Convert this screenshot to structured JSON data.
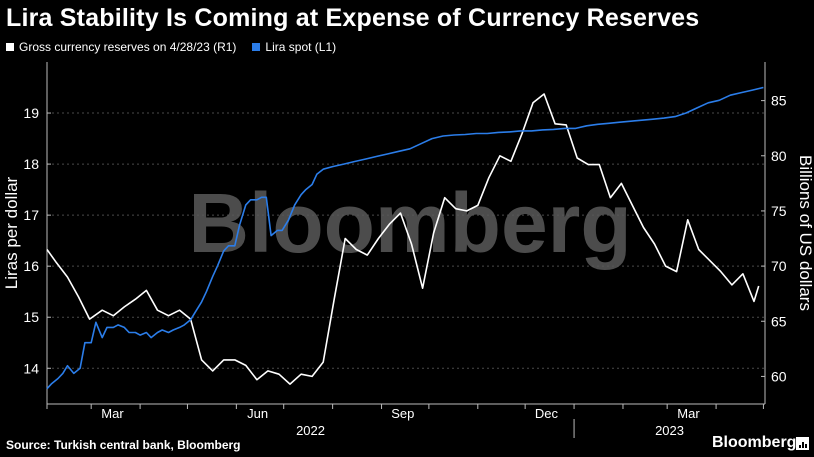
{
  "title": "Lira Stability Is Coming at Expense of Currency Reserves",
  "source": "Source: Turkish central bank, Bloomberg",
  "brand": "Bloomberg",
  "watermark": "Bloomberg",
  "colors": {
    "background": "#000000",
    "reserves": "#ffffff",
    "lira": "#2b7de9",
    "grid": "#4a4a4a",
    "watermark": "#5a5a5a"
  },
  "icons": {
    "brand_icon": "bar-chart-icon"
  },
  "chart_data": {
    "type": "line",
    "title": "Lira Stability Is Coming at Expense of Currency Reserves",
    "legend_position": "top-left",
    "grid": true,
    "left_axis": {
      "label": "Liras per dollar",
      "ticks": [
        "14",
        "15",
        "16",
        "17",
        "18",
        "19"
      ],
      "ylim": [
        13.3,
        20.0
      ]
    },
    "right_axis": {
      "label": "Billions of US dollars",
      "ticks": [
        "60",
        "65",
        "70",
        "75",
        "80",
        "85"
      ],
      "ylim": [
        57.5,
        88.5
      ]
    },
    "x_axis": {
      "month_labels": [
        "Mar",
        "Jun",
        "Sep",
        "Dec",
        "Mar"
      ],
      "year_labels": [
        "2022",
        "2023"
      ],
      "xlim": [
        "2022-02-01",
        "2023-05-02"
      ]
    },
    "series": [
      {
        "name": "Gross currency reserves on 4/28/23 (R1)",
        "axis": "right",
        "points": [
          [
            "2022-02-01",
            71.5
          ],
          [
            "2022-02-07",
            70.3
          ],
          [
            "2022-02-14",
            69.0
          ],
          [
            "2022-02-21",
            67.2
          ],
          [
            "2022-02-28",
            65.2
          ],
          [
            "2022-03-08",
            66.0
          ],
          [
            "2022-03-15",
            65.5
          ],
          [
            "2022-03-22",
            66.3
          ],
          [
            "2022-03-29",
            67.0
          ],
          [
            "2022-04-05",
            67.8
          ],
          [
            "2022-04-12",
            66.0
          ],
          [
            "2022-04-19",
            65.5
          ],
          [
            "2022-04-26",
            66.0
          ],
          [
            "2022-05-03",
            65.2
          ],
          [
            "2022-05-10",
            61.5
          ],
          [
            "2022-05-17",
            60.5
          ],
          [
            "2022-05-24",
            61.5
          ],
          [
            "2022-05-31",
            61.5
          ],
          [
            "2022-06-07",
            61.0
          ],
          [
            "2022-06-14",
            59.7
          ],
          [
            "2022-06-21",
            60.5
          ],
          [
            "2022-06-28",
            60.2
          ],
          [
            "2022-07-05",
            59.3
          ],
          [
            "2022-07-12",
            60.2
          ],
          [
            "2022-07-19",
            60.0
          ],
          [
            "2022-07-26",
            61.3
          ],
          [
            "2022-08-02",
            67.0
          ],
          [
            "2022-08-09",
            72.5
          ],
          [
            "2022-08-16",
            71.5
          ],
          [
            "2022-08-23",
            71.0
          ],
          [
            "2022-08-30",
            72.5
          ],
          [
            "2022-09-06",
            73.8
          ],
          [
            "2022-09-13",
            74.8
          ],
          [
            "2022-09-20",
            72.0
          ],
          [
            "2022-09-27",
            68.0
          ],
          [
            "2022-10-04",
            73.0
          ],
          [
            "2022-10-11",
            76.2
          ],
          [
            "2022-10-18",
            75.2
          ],
          [
            "2022-10-25",
            75.0
          ],
          [
            "2022-11-01",
            75.5
          ],
          [
            "2022-11-08",
            78.0
          ],
          [
            "2022-11-15",
            80.0
          ],
          [
            "2022-11-22",
            79.5
          ],
          [
            "2022-11-29",
            82.0
          ],
          [
            "2022-12-06",
            84.8
          ],
          [
            "2022-12-13",
            85.6
          ],
          [
            "2022-12-20",
            82.9
          ],
          [
            "2022-12-27",
            82.8
          ],
          [
            "2023-01-03",
            79.8
          ],
          [
            "2023-01-10",
            79.2
          ],
          [
            "2023-01-17",
            79.2
          ],
          [
            "2023-01-24",
            76.2
          ],
          [
            "2023-01-31",
            77.5
          ],
          [
            "2023-02-07",
            75.5
          ],
          [
            "2023-02-14",
            73.5
          ],
          [
            "2023-02-21",
            72.0
          ],
          [
            "2023-02-28",
            70.0
          ],
          [
            "2023-03-07",
            69.5
          ],
          [
            "2023-03-14",
            74.2
          ],
          [
            "2023-03-21",
            71.5
          ],
          [
            "2023-03-28",
            70.5
          ],
          [
            "2023-04-04",
            69.5
          ],
          [
            "2023-04-11",
            68.3
          ],
          [
            "2023-04-18",
            69.3
          ],
          [
            "2023-04-25",
            66.8
          ],
          [
            "2023-04-28",
            68.2
          ]
        ]
      },
      {
        "name": "Lira spot (L1)",
        "axis": "left",
        "points": [
          [
            "2022-02-01",
            13.6
          ],
          [
            "2022-02-04",
            13.7
          ],
          [
            "2022-02-08",
            13.8
          ],
          [
            "2022-02-11",
            13.9
          ],
          [
            "2022-02-14",
            14.05
          ],
          [
            "2022-02-18",
            13.9
          ],
          [
            "2022-02-22",
            14.0
          ],
          [
            "2022-02-25",
            14.5
          ],
          [
            "2022-03-01",
            14.5
          ],
          [
            "2022-03-04",
            14.9
          ],
          [
            "2022-03-08",
            14.6
          ],
          [
            "2022-03-11",
            14.8
          ],
          [
            "2022-03-15",
            14.8
          ],
          [
            "2022-03-18",
            14.85
          ],
          [
            "2022-03-22",
            14.8
          ],
          [
            "2022-03-25",
            14.7
          ],
          [
            "2022-03-29",
            14.7
          ],
          [
            "2022-04-01",
            14.65
          ],
          [
            "2022-04-05",
            14.7
          ],
          [
            "2022-04-08",
            14.6
          ],
          [
            "2022-04-12",
            14.7
          ],
          [
            "2022-04-15",
            14.75
          ],
          [
            "2022-04-19",
            14.7
          ],
          [
            "2022-04-22",
            14.75
          ],
          [
            "2022-04-26",
            14.8
          ],
          [
            "2022-04-29",
            14.85
          ],
          [
            "2022-05-03",
            14.95
          ],
          [
            "2022-05-06",
            15.1
          ],
          [
            "2022-05-10",
            15.3
          ],
          [
            "2022-05-13",
            15.5
          ],
          [
            "2022-05-17",
            15.8
          ],
          [
            "2022-05-20",
            16.0
          ],
          [
            "2022-05-24",
            16.3
          ],
          [
            "2022-05-27",
            16.4
          ],
          [
            "2022-05-31",
            16.4
          ],
          [
            "2022-06-03",
            16.8
          ],
          [
            "2022-06-07",
            17.2
          ],
          [
            "2022-06-10",
            17.3
          ],
          [
            "2022-06-14",
            17.3
          ],
          [
            "2022-06-17",
            17.35
          ],
          [
            "2022-06-20",
            17.35
          ],
          [
            "2022-06-23",
            16.6
          ],
          [
            "2022-06-27",
            16.7
          ],
          [
            "2022-06-30",
            16.7
          ],
          [
            "2022-07-04",
            16.9
          ],
          [
            "2022-07-08",
            17.2
          ],
          [
            "2022-07-12",
            17.4
          ],
          [
            "2022-07-15",
            17.5
          ],
          [
            "2022-07-19",
            17.6
          ],
          [
            "2022-07-22",
            17.8
          ],
          [
            "2022-07-26",
            17.9
          ],
          [
            "2022-08-01",
            17.95
          ],
          [
            "2022-08-08",
            18.0
          ],
          [
            "2022-08-15",
            18.05
          ],
          [
            "2022-08-22",
            18.1
          ],
          [
            "2022-08-29",
            18.15
          ],
          [
            "2022-09-05",
            18.2
          ],
          [
            "2022-09-12",
            18.25
          ],
          [
            "2022-09-19",
            18.3
          ],
          [
            "2022-09-26",
            18.4
          ],
          [
            "2022-10-03",
            18.5
          ],
          [
            "2022-10-10",
            18.55
          ],
          [
            "2022-10-17",
            18.57
          ],
          [
            "2022-10-24",
            18.58
          ],
          [
            "2022-10-31",
            18.6
          ],
          [
            "2022-11-07",
            18.6
          ],
          [
            "2022-11-14",
            18.62
          ],
          [
            "2022-11-21",
            18.63
          ],
          [
            "2022-11-28",
            18.65
          ],
          [
            "2022-12-05",
            18.65
          ],
          [
            "2022-12-12",
            18.67
          ],
          [
            "2022-12-19",
            18.68
          ],
          [
            "2022-12-26",
            18.7
          ],
          [
            "2023-01-02",
            18.7
          ],
          [
            "2023-01-09",
            18.75
          ],
          [
            "2023-01-16",
            18.78
          ],
          [
            "2023-01-23",
            18.8
          ],
          [
            "2023-01-30",
            18.82
          ],
          [
            "2023-02-06",
            18.84
          ],
          [
            "2023-02-13",
            18.86
          ],
          [
            "2023-02-20",
            18.88
          ],
          [
            "2023-02-27",
            18.9
          ],
          [
            "2023-03-06",
            18.93
          ],
          [
            "2023-03-13",
            19.0
          ],
          [
            "2023-03-20",
            19.1
          ],
          [
            "2023-03-27",
            19.2
          ],
          [
            "2023-04-03",
            19.25
          ],
          [
            "2023-04-10",
            19.35
          ],
          [
            "2023-04-17",
            19.4
          ],
          [
            "2023-04-24",
            19.45
          ],
          [
            "2023-05-01",
            19.5
          ]
        ]
      }
    ]
  }
}
